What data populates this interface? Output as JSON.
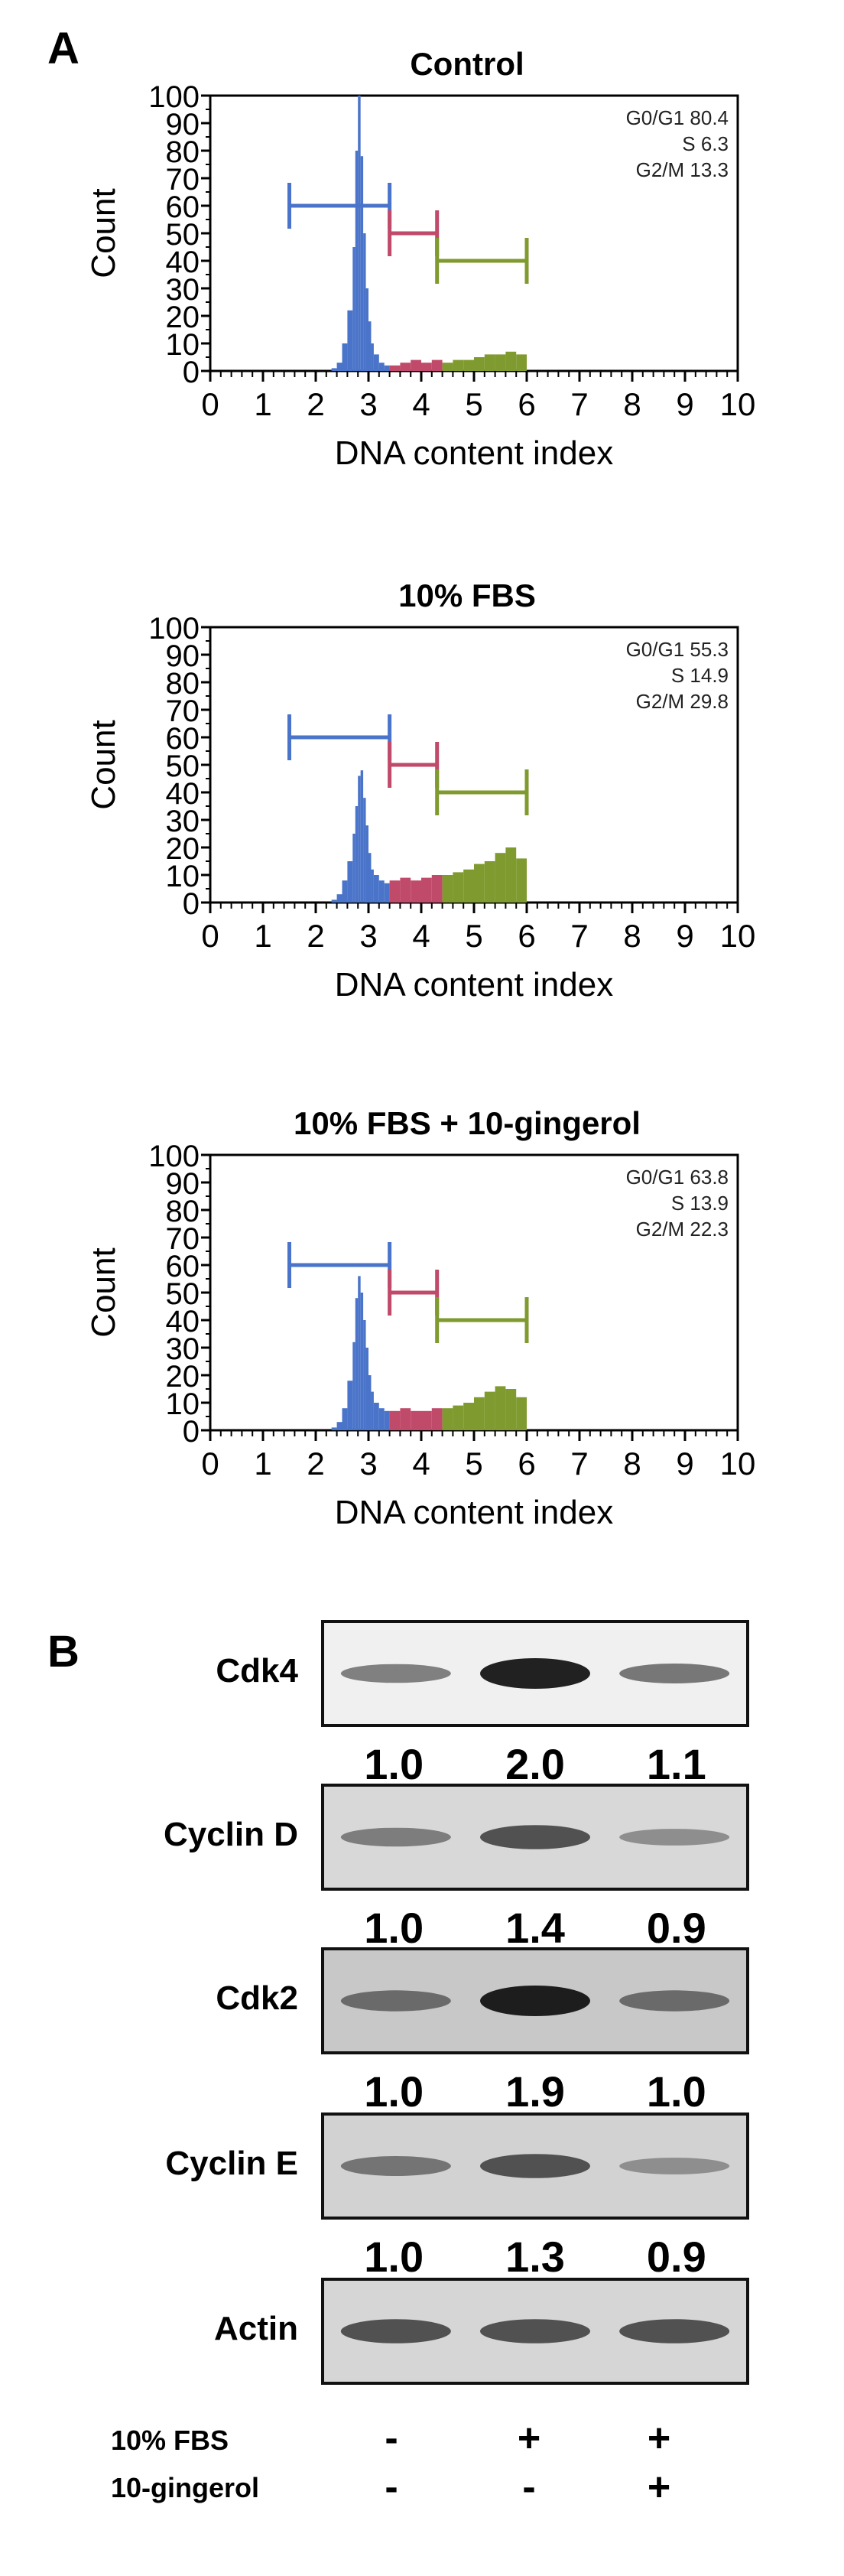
{
  "panels": {
    "a": "A",
    "b": "B"
  },
  "chart_data": [
    {
      "type": "histogram",
      "title": "Control",
      "xlabel": "DNA content index",
      "ylabel": "Count",
      "xlim": [
        0,
        10
      ],
      "ylim": [
        0,
        100
      ],
      "xticks": [
        "0",
        "1",
        "2",
        "3",
        "4",
        "5",
        "6",
        "7",
        "8",
        "9",
        "10"
      ],
      "yticks": [
        "0",
        "10",
        "20",
        "30",
        "40",
        "50",
        "60",
        "70",
        "80",
        "90",
        "100"
      ],
      "stats": [
        "G0/G1 80.4",
        "S 6.3",
        "G2/M 13.3"
      ],
      "gates": [
        {
          "name": "G0/G1",
          "x_start": 1.5,
          "x_end": 3.4,
          "y": 60,
          "color": "#4a74c9"
        },
        {
          "name": "S",
          "x_start": 3.4,
          "x_end": 4.3,
          "y": 50,
          "color": "#c04a6a"
        },
        {
          "name": "G2/M",
          "x_start": 4.3,
          "x_end": 6.0,
          "y": 40,
          "color": "#7f9a2e"
        }
      ],
      "histogram": {
        "x": [
          2.2,
          2.3,
          2.4,
          2.5,
          2.6,
          2.7,
          2.75,
          2.8,
          2.85,
          2.9,
          2.95,
          3.0,
          3.05,
          3.1,
          3.2,
          3.3,
          3.4,
          3.6,
          3.8,
          4.0,
          4.2,
          4.4,
          4.6,
          4.8,
          5.0,
          5.2,
          5.4,
          5.6,
          5.8,
          6.0
        ],
        "y": [
          0,
          1,
          3,
          10,
          22,
          45,
          80,
          100,
          78,
          50,
          30,
          18,
          10,
          6,
          3,
          2,
          2,
          3,
          4,
          3,
          4,
          3,
          4,
          4,
          5,
          6,
          6,
          7,
          6,
          1
        ]
      }
    },
    {
      "type": "histogram",
      "title": "10% FBS",
      "xlabel": "DNA content index",
      "ylabel": "Count",
      "xlim": [
        0,
        10
      ],
      "ylim": [
        0,
        100
      ],
      "xticks": [
        "0",
        "1",
        "2",
        "3",
        "4",
        "5",
        "6",
        "7",
        "8",
        "9",
        "10"
      ],
      "yticks": [
        "0",
        "10",
        "20",
        "30",
        "40",
        "50",
        "60",
        "70",
        "80",
        "90",
        "100"
      ],
      "stats": [
        "G0/G1 55.3",
        "S 14.9",
        "G2/M 29.8"
      ],
      "gates": [
        {
          "name": "G0/G1",
          "x_start": 1.5,
          "x_end": 3.4,
          "y": 60,
          "color": "#4a74c9"
        },
        {
          "name": "S",
          "x_start": 3.4,
          "x_end": 4.3,
          "y": 50,
          "color": "#c04a6a"
        },
        {
          "name": "G2/M",
          "x_start": 4.3,
          "x_end": 6.0,
          "y": 40,
          "color": "#7f9a2e"
        }
      ],
      "histogram": {
        "x": [
          2.2,
          2.3,
          2.4,
          2.5,
          2.6,
          2.7,
          2.75,
          2.8,
          2.85,
          2.9,
          2.95,
          3.0,
          3.05,
          3.1,
          3.2,
          3.3,
          3.4,
          3.6,
          3.8,
          4.0,
          4.2,
          4.4,
          4.6,
          4.8,
          5.0,
          5.2,
          5.4,
          5.6,
          5.8,
          6.0
        ],
        "y": [
          0,
          1,
          3,
          8,
          15,
          25,
          35,
          46,
          48,
          38,
          28,
          18,
          12,
          10,
          8,
          7,
          8,
          9,
          8,
          9,
          10,
          10,
          11,
          12,
          14,
          15,
          18,
          20,
          16,
          2
        ]
      }
    },
    {
      "type": "histogram",
      "title": "10% FBS + 10-gingerol",
      "xlabel": "DNA content index",
      "ylabel": "Count",
      "xlim": [
        0,
        10
      ],
      "ylim": [
        0,
        100
      ],
      "xticks": [
        "0",
        "1",
        "2",
        "3",
        "4",
        "5",
        "6",
        "7",
        "8",
        "9",
        "10"
      ],
      "yticks": [
        "0",
        "10",
        "20",
        "30",
        "40",
        "50",
        "60",
        "70",
        "80",
        "90",
        "100"
      ],
      "stats": [
        "G0/G1 63.8",
        "S 13.9",
        "G2/M 22.3"
      ],
      "gates": [
        {
          "name": "G0/G1",
          "x_start": 1.5,
          "x_end": 3.4,
          "y": 60,
          "color": "#4a74c9"
        },
        {
          "name": "S",
          "x_start": 3.4,
          "x_end": 4.3,
          "y": 50,
          "color": "#c04a6a"
        },
        {
          "name": "G2/M",
          "x_start": 4.3,
          "x_end": 6.0,
          "y": 40,
          "color": "#7f9a2e"
        }
      ],
      "histogram": {
        "x": [
          2.2,
          2.3,
          2.4,
          2.5,
          2.6,
          2.7,
          2.75,
          2.8,
          2.85,
          2.9,
          2.95,
          3.0,
          3.05,
          3.1,
          3.2,
          3.3,
          3.4,
          3.6,
          3.8,
          4.0,
          4.2,
          4.4,
          4.6,
          4.8,
          5.0,
          5.2,
          5.4,
          5.6,
          5.8,
          6.0
        ],
        "y": [
          0,
          1,
          3,
          8,
          18,
          32,
          48,
          56,
          50,
          40,
          30,
          20,
          14,
          10,
          8,
          7,
          7,
          8,
          7,
          7,
          8,
          8,
          9,
          10,
          12,
          14,
          16,
          15,
          12,
          2
        ]
      }
    }
  ],
  "western": {
    "blots": [
      {
        "label": "Cdk4",
        "quant": [
          "1.0",
          "2.0",
          "1.1"
        ],
        "band_intensity": [
          0.45,
          1.0,
          0.5
        ],
        "background": "#f0f0f0"
      },
      {
        "label": "Cyclin D",
        "quant": [
          "1.0",
          "1.4",
          "0.9"
        ],
        "band_intensity": [
          0.45,
          0.7,
          0.35
        ],
        "background": "#d8d8d8"
      },
      {
        "label": "Cdk2",
        "quant": [
          "1.0",
          "1.9",
          "1.0"
        ],
        "band_intensity": [
          0.55,
          1.0,
          0.55
        ],
        "background": "#c8c8c8"
      },
      {
        "label": "Cyclin E",
        "quant": [
          "1.0",
          "1.3",
          "0.9"
        ],
        "band_intensity": [
          0.5,
          0.7,
          0.35
        ],
        "background": "#d2d2d2"
      },
      {
        "label": "Actin",
        "quant": [],
        "band_intensity": [
          0.7,
          0.7,
          0.7
        ],
        "background": "#d6d6d6"
      }
    ],
    "conditions": [
      {
        "label": "10% FBS",
        "signs": [
          "-",
          "+",
          "+"
        ]
      },
      {
        "label": "10-gingerol",
        "signs": [
          "-",
          "-",
          "+"
        ]
      }
    ]
  },
  "colors": {
    "g0g1": "#4a74c9",
    "s_phase": "#c04a6a",
    "g2m": "#7f9a2e",
    "axis": "#000000"
  }
}
